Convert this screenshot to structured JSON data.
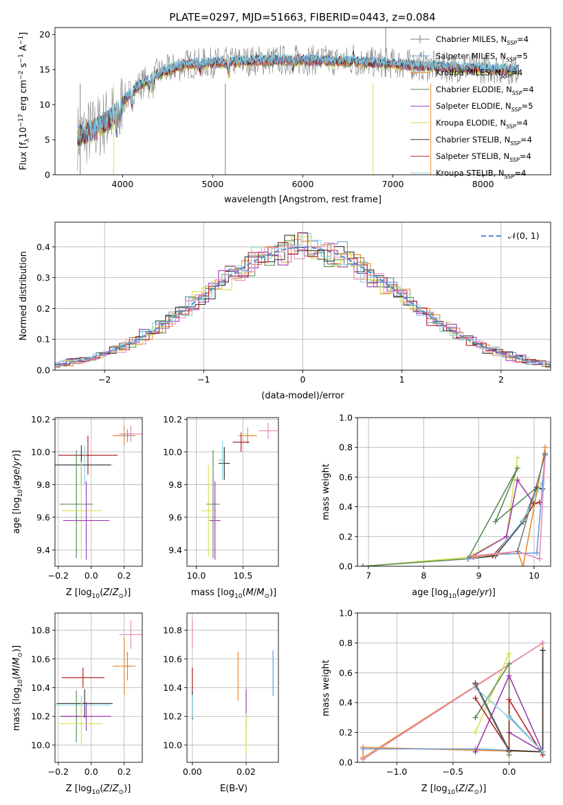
{
  "title": "PLATE=0297, MJD=51663, FIBERID=0443, z=0.084",
  "colors": {
    "Chabrier MILES": "#7a7a7a",
    "Salpeter MILES": "#6a9ad8",
    "Kroupa MILES": "#e6892c",
    "Chabrier ELODIE": "#5b8a5b",
    "Salpeter ELODIE": "#9b3bb0",
    "Kroupa ELODIE": "#d6e04a",
    "Chabrier STELIB": "#333333",
    "Salpeter STELIB": "#b22222",
    "Kroupa STELIB": "#86d3dd",
    "extra": "#e58ab8"
  },
  "legend": [
    {
      "label": "Chabrier MILES, N",
      "sub": "SSP",
      "tail": "=4",
      "key": "Chabrier MILES"
    },
    {
      "label": "Salpeter MILES, N",
      "sub": "SSP",
      "tail": "=5",
      "key": "Salpeter MILES"
    },
    {
      "label": "Kroupa MILES, N",
      "sub": "SSP",
      "tail": "=4",
      "key": "Kroupa MILES"
    },
    {
      "label": "Chabrier ELODIE, N",
      "sub": "SSP",
      "tail": "=4",
      "key": "Chabrier ELODIE"
    },
    {
      "label": "Salpeter ELODIE, N",
      "sub": "SSP",
      "tail": "=5",
      "key": "Salpeter ELODIE"
    },
    {
      "label": "Kroupa ELODIE, N",
      "sub": "SSP",
      "tail": "=4",
      "key": "Kroupa ELODIE"
    },
    {
      "label": "Chabrier STELIB, N",
      "sub": "SSP",
      "tail": "=4",
      "key": "Chabrier STELIB"
    },
    {
      "label": "Salpeter STELIB, N",
      "sub": "SSP",
      "tail": "=4",
      "key": "Salpeter STELIB"
    },
    {
      "label": "Kroupa STELIB, N",
      "sub": "SSP",
      "tail": "=4",
      "key": "Kroupa STELIB"
    }
  ],
  "chart_data": [
    {
      "id": "spectrum",
      "type": "line",
      "xlabel": "wavelength [Angstrom, rest frame]",
      "ylabel": "Flux [f_λ 10^-17 erg cm^-2 s^-1 A^-1]",
      "xlim": [
        3250,
        8750
      ],
      "ylim": [
        0,
        21
      ],
      "xticks": [
        4000,
        5000,
        6000,
        7000,
        8000
      ],
      "yticks": [
        0,
        5,
        10,
        15,
        20
      ],
      "continuum": [
        [
          3500,
          5.5
        ],
        [
          3700,
          6.5
        ],
        [
          3900,
          8.5
        ],
        [
          4000,
          10.5
        ],
        [
          4150,
          12.5
        ],
        [
          4400,
          14.5
        ],
        [
          4700,
          15.8
        ],
        [
          5000,
          16
        ],
        [
          5500,
          16.3
        ],
        [
          6000,
          16.4
        ],
        [
          6500,
          16.2
        ],
        [
          7000,
          15.9
        ],
        [
          7500,
          15.4
        ],
        [
          8000,
          15.2
        ],
        [
          8400,
          15.0
        ]
      ]
    },
    {
      "id": "residuals",
      "type": "histogram",
      "xlabel": "(data-model)/error",
      "ylabel": "Normed distribution",
      "xlim": [
        -2.5,
        2.5
      ],
      "ylim": [
        0,
        0.48
      ],
      "xticks": [
        -2,
        -1,
        0,
        1,
        2
      ],
      "yticks": [
        0.0,
        0.1,
        0.2,
        0.3,
        0.4
      ],
      "reference": "N(0,1)",
      "legend_label": "𝒩(0, 1)"
    },
    {
      "id": "age_vs_Z",
      "type": "errorbar",
      "xlabel": "Z [log10(Z/Z⊙)]",
      "ylabel": "age [log10(age/yr)]",
      "xlim": [
        -0.22,
        0.31
      ],
      "ylim": [
        9.3,
        10.21
      ],
      "xticks": [
        -0.2,
        0.0,
        0.2
      ],
      "yticks": [
        9.4,
        9.6,
        9.8,
        10.0,
        10.2
      ],
      "points": [
        {
          "x": 0.24,
          "y": 10.11,
          "xerr": 0.07,
          "yerr": 0.05,
          "c": "extra"
        },
        {
          "x": 0.2,
          "y": 10.1,
          "xerr": 0.07,
          "yerr": 0.06,
          "c": "Kroupa MILES"
        },
        {
          "x": 0.22,
          "y": 10.1,
          "xerr": 0.02,
          "yerr": 0.04,
          "c": "Salpeter MILES"
        },
        {
          "x": -0.02,
          "y": 9.98,
          "xerr": 0.18,
          "yerr": 0.12,
          "c": "Salpeter STELIB"
        },
        {
          "x": -0.04,
          "y": 9.92,
          "xerr": 0.17,
          "yerr": 0.12,
          "c": "Kroupa STELIB"
        },
        {
          "x": -0.06,
          "y": 9.92,
          "xerr": 0.18,
          "yerr": 0.12,
          "c": "Chabrier STELIB"
        },
        {
          "x": -0.09,
          "y": 9.68,
          "xerr": 0.1,
          "yerr": 0.33,
          "c": "Chabrier ELODIE"
        },
        {
          "x": -0.06,
          "y": 9.64,
          "xerr": 0.12,
          "yerr": 0.3,
          "c": "Kroupa ELODIE"
        },
        {
          "x": -0.03,
          "y": 9.58,
          "xerr": 0.14,
          "yerr": 0.24,
          "c": "Salpeter ELODIE"
        }
      ]
    },
    {
      "id": "age_vs_mass",
      "type": "errorbar",
      "xlabel": "mass [log10(M/M⊙)]",
      "ylabel": "",
      "xlim": [
        9.9,
        10.88
      ],
      "ylim": [
        9.3,
        10.21
      ],
      "xticks": [
        10.0,
        10.5
      ],
      "yticks": [
        9.4,
        9.6,
        9.8,
        10.0,
        10.2
      ],
      "points": [
        {
          "x": 10.77,
          "y": 10.13,
          "xerr": 0.1,
          "yerr": 0.05,
          "c": "extra"
        },
        {
          "x": 10.55,
          "y": 10.1,
          "xerr": 0.1,
          "yerr": 0.05,
          "c": "Kroupa MILES"
        },
        {
          "x": 10.48,
          "y": 10.06,
          "xerr": 0.09,
          "yerr": 0.06,
          "c": "Salpeter STELIB"
        },
        {
          "x": 10.3,
          "y": 9.93,
          "xerr": 0.06,
          "yerr": 0.1,
          "c": "Chabrier STELIB"
        },
        {
          "x": 10.28,
          "y": 9.95,
          "xerr": 0.04,
          "yerr": 0.12,
          "c": "Kroupa STELIB"
        },
        {
          "x": 10.18,
          "y": 9.68,
          "xerr": 0.07,
          "yerr": 0.33,
          "c": "Chabrier ELODIE"
        },
        {
          "x": 10.13,
          "y": 9.64,
          "xerr": 0.08,
          "yerr": 0.28,
          "c": "Kroupa ELODIE"
        },
        {
          "x": 10.2,
          "y": 9.58,
          "xerr": 0.06,
          "yerr": 0.24,
          "c": "Salpeter ELODIE"
        }
      ]
    },
    {
      "id": "weight_vs_age",
      "type": "line",
      "xlabel": "age [log10(age/yr)]",
      "ylabel": "mass weight",
      "xlim": [
        6.8,
        10.3
      ],
      "ylim": [
        0,
        1.0
      ],
      "xticks": [
        7,
        8,
        9,
        10
      ],
      "yticks": [
        0.0,
        0.2,
        0.4,
        0.6,
        0.8,
        1.0
      ],
      "series": [
        {
          "c": "Kroupa ELODIE",
          "x": [
            6.9,
            8.8,
            9.5,
            9.7
          ],
          "y": [
            0.0,
            0.06,
            0.2,
            0.73
          ]
        },
        {
          "c": "Chabrier ELODIE",
          "x": [
            6.9,
            8.8,
            9.7,
            9.3,
            10.05
          ],
          "y": [
            0.0,
            0.05,
            0.66,
            0.3,
            0.53
          ]
        },
        {
          "c": "Salpeter ELODIE",
          "x": [
            8.8,
            9.5,
            9.7,
            10.0
          ],
          "y": [
            0.05,
            0.2,
            0.58,
            0.42
          ]
        },
        {
          "c": "Salpeter STELIB",
          "x": [
            8.8,
            9.25,
            9.8,
            10.0,
            10.1
          ],
          "y": [
            0.05,
            0.07,
            0.3,
            0.42,
            0.43
          ]
        },
        {
          "c": "Chabrier STELIB",
          "x": [
            8.8,
            9.3,
            9.8,
            10.05,
            10.15
          ],
          "y": [
            0.05,
            0.07,
            0.3,
            0.53,
            0.52
          ]
        },
        {
          "c": "Kroupa STELIB",
          "x": [
            8.8,
            9.3,
            9.8,
            10.05,
            10.15
          ],
          "y": [
            0.05,
            0.08,
            0.31,
            0.5,
            0.56
          ]
        },
        {
          "c": "Salpeter MILES",
          "x": [
            8.8,
            9.3,
            10.05,
            10.2
          ],
          "y": [
            0.05,
            0.08,
            0.09,
            0.76
          ]
        },
        {
          "c": "Kroupa MILES",
          "x": [
            8.9,
            9.7,
            9.8,
            10.2
          ],
          "y": [
            0.06,
            0.1,
            0.0,
            0.8
          ]
        },
        {
          "c": "extra",
          "x": [
            8.9,
            9.7,
            10.1,
            10.2
          ],
          "y": [
            0.07,
            0.1,
            0.05,
            0.75
          ]
        },
        {
          "c": "Chabrier MILES",
          "x": [
            9.7,
            10.2
          ],
          "y": [
            0.1,
            0.75
          ]
        }
      ]
    },
    {
      "id": "mass_vs_Z",
      "type": "errorbar",
      "xlabel": "Z [log10(Z/Z⊙)]",
      "ylabel": "mass [log10(M/M⊙)]",
      "xlim": [
        -0.22,
        0.31
      ],
      "ylim": [
        9.88,
        10.92
      ],
      "xticks": [
        -0.2,
        0.0,
        0.2
      ],
      "yticks": [
        10.0,
        10.2,
        10.4,
        10.6,
        10.8
      ],
      "points": [
        {
          "x": 0.24,
          "y": 10.77,
          "xerr": 0.07,
          "yerr": 0.1,
          "c": "extra"
        },
        {
          "x": 0.22,
          "y": 10.55,
          "xerr": 0.02,
          "yerr": 0.1,
          "c": "Salpeter MILES"
        },
        {
          "x": 0.2,
          "y": 10.55,
          "xerr": 0.07,
          "yerr": 0.2,
          "c": "Kroupa MILES"
        },
        {
          "x": -0.05,
          "y": 10.47,
          "xerr": 0.13,
          "yerr": 0.07,
          "c": "Salpeter STELIB"
        },
        {
          "x": -0.04,
          "y": 10.29,
          "xerr": 0.17,
          "yerr": 0.1,
          "c": "Chabrier STELIB"
        },
        {
          "x": -0.06,
          "y": 10.28,
          "xerr": 0.18,
          "yerr": 0.06,
          "c": "Kroupa STELIB"
        },
        {
          "x": -0.09,
          "y": 10.2,
          "xerr": 0.1,
          "yerr": 0.18,
          "c": "Chabrier ELODIE"
        },
        {
          "x": -0.03,
          "y": 10.2,
          "xerr": 0.15,
          "yerr": 0.1,
          "c": "Salpeter ELODIE"
        },
        {
          "x": -0.06,
          "y": 10.15,
          "xerr": 0.13,
          "yerr": 0.15,
          "c": "Kroupa ELODIE"
        }
      ]
    },
    {
      "id": "mass_vs_ebv",
      "type": "errorbar",
      "xlabel": "E(B-V)",
      "ylabel": "",
      "xlim": [
        -0.002,
        0.032
      ],
      "ylim": [
        9.88,
        10.92
      ],
      "xticks": [
        0.0,
        0.02
      ],
      "yticks": [
        10.0,
        10.2,
        10.4,
        10.6,
        10.8
      ],
      "points": [
        {
          "x": 0.0,
          "y": 10.78,
          "xerr": 0,
          "yerr": 0.1,
          "c": "extra"
        },
        {
          "x": 0.0,
          "y": 10.46,
          "xerr": 0,
          "yerr": 0.08,
          "c": "Salpeter STELIB"
        },
        {
          "x": 0.0,
          "y": 10.28,
          "xerr": 0,
          "yerr": 0.1,
          "c": "Chabrier STELIB"
        },
        {
          "x": 0.0,
          "y": 10.27,
          "xerr": 0,
          "yerr": 0.08,
          "c": "Kroupa STELIB"
        },
        {
          "x": 0.017,
          "y": 10.48,
          "xerr": 0,
          "yerr": 0.17,
          "c": "Kroupa MILES"
        },
        {
          "x": 0.02,
          "y": 10.25,
          "xerr": 0,
          "yerr": 0.14,
          "c": "Salpeter ELODIE"
        },
        {
          "x": 0.02,
          "y": 10.08,
          "xerr": 0,
          "yerr": 0.14,
          "c": "Kroupa ELODIE"
        },
        {
          "x": 0.03,
          "y": 10.5,
          "xerr": 0,
          "yerr": 0.16,
          "c": "Salpeter MILES"
        }
      ]
    },
    {
      "id": "weight_vs_Z",
      "type": "line",
      "xlabel": "Z [log10(Z/Z⊙)]",
      "ylabel": "mass weight",
      "xlim": [
        -1.35,
        0.37
      ],
      "ylim": [
        0,
        1.0
      ],
      "xticks": [
        -1.0,
        -0.5,
        0.0
      ],
      "yticks": [
        0.0,
        0.2,
        0.4,
        0.6,
        0.8,
        1.0
      ],
      "series": [
        {
          "c": "Kroupa MILES",
          "x": [
            -1.3,
            0.3,
            0.3,
            -1.3,
            -1.3
          ],
          "y": [
            0.03,
            0.8,
            0.07,
            0.1,
            0.03
          ]
        },
        {
          "c": "extra",
          "x": [
            -1.3,
            0.3
          ],
          "y": [
            0.02,
            0.8
          ]
        },
        {
          "c": "Salpeter MILES",
          "x": [
            -1.3,
            -0.3,
            0.3,
            0.0,
            0.3
          ],
          "y": [
            0.09,
            0.09,
            0.07,
            0.31,
            0.07
          ]
        },
        {
          "c": "Kroupa ELODIE",
          "x": [
            -0.3,
            0.0,
            0.0
          ],
          "y": [
            0.2,
            0.73,
            0.05
          ]
        },
        {
          "c": "Chabrier ELODIE",
          "x": [
            -0.3,
            0.0,
            0.0
          ],
          "y": [
            0.3,
            0.66,
            0.05
          ]
        },
        {
          "c": "Salpeter ELODIE",
          "x": [
            -0.3,
            0.0,
            0.3,
            0.0
          ],
          "y": [
            0.07,
            0.58,
            0.07,
            0.2
          ]
        },
        {
          "c": "Salpeter STELIB",
          "x": [
            -0.3,
            0.0,
            0.0,
            0.3
          ],
          "y": [
            0.43,
            0.08,
            0.42,
            0.05
          ]
        },
        {
          "c": "Chabrier STELIB",
          "x": [
            -0.3,
            0.0,
            0.3,
            0.3
          ],
          "y": [
            0.53,
            0.08,
            0.07,
            0.75
          ]
        },
        {
          "c": "Kroupa STELIB",
          "x": [
            -0.3,
            0.0,
            0.3
          ],
          "y": [
            0.5,
            0.3,
            0.07
          ]
        },
        {
          "c": "Chabrier MILES",
          "x": [
            -0.3,
            0.0
          ],
          "y": [
            0.52,
            0.07
          ]
        }
      ]
    }
  ]
}
